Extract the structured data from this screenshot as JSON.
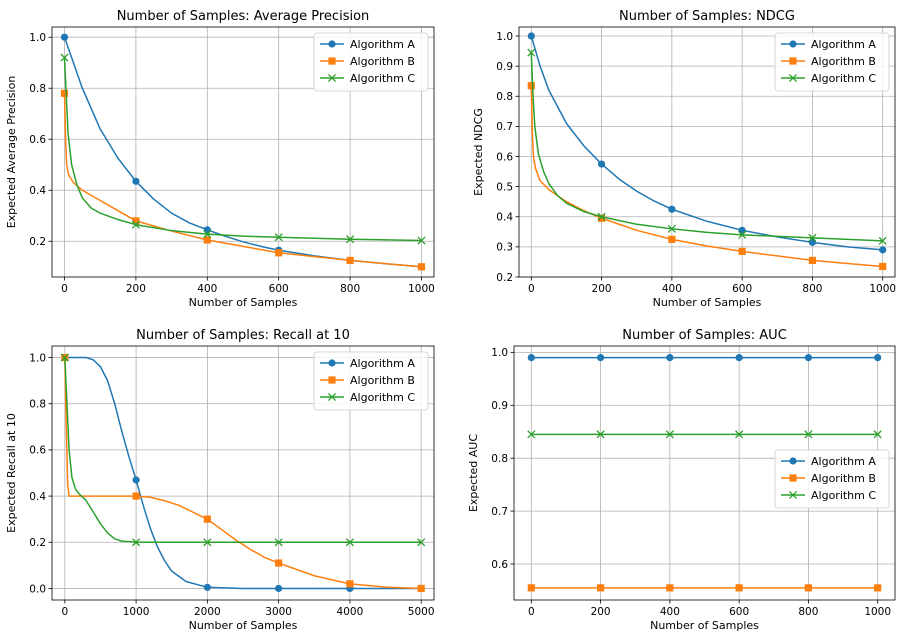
{
  "colors": {
    "Algorithm A": "#1f77b4",
    "Algorithm B": "#ff7f0e",
    "Algorithm C": "#2ca02c"
  },
  "chart_data": [
    {
      "type": "line",
      "title": "Number of Samples: Average Precision",
      "xlabel": "Number of Samples",
      "ylabel": "Expected Average Precision",
      "xlim": [
        -35,
        1035
      ],
      "ylim": [
        0.06,
        1.04
      ],
      "xticks": [
        0,
        200,
        400,
        600,
        800,
        1000
      ],
      "yticks": [
        0.2,
        0.4,
        0.6,
        0.8,
        1.0
      ],
      "grid": true,
      "legend": "top-right",
      "x": [
        0,
        200,
        400,
        600,
        800,
        1000
      ],
      "series": [
        {
          "name": "Algorithm A",
          "marker": "circle",
          "values": [
            1.0,
            0.435,
            0.245,
            0.165,
            0.125,
            0.1
          ],
          "curve": [
            [
              0,
              1.0
            ],
            [
              50,
              0.8
            ],
            [
              100,
              0.64
            ],
            [
              150,
              0.525
            ],
            [
              200,
              0.435
            ],
            [
              250,
              0.365
            ],
            [
              300,
              0.31
            ],
            [
              350,
              0.272
            ],
            [
              400,
              0.245
            ],
            [
              450,
              0.22
            ],
            [
              500,
              0.198
            ],
            [
              550,
              0.18
            ],
            [
              600,
              0.165
            ],
            [
              700,
              0.143
            ],
            [
              800,
              0.125
            ],
            [
              900,
              0.112
            ],
            [
              1000,
              0.1
            ]
          ]
        },
        {
          "name": "Algorithm B",
          "marker": "square",
          "values": [
            0.78,
            0.28,
            0.205,
            0.155,
            0.125,
            0.1
          ],
          "curve": [
            [
              0,
              0.78
            ],
            [
              3,
              0.6
            ],
            [
              6,
              0.5
            ],
            [
              12,
              0.46
            ],
            [
              25,
              0.43
            ],
            [
              50,
              0.4
            ],
            [
              100,
              0.36
            ],
            [
              150,
              0.32
            ],
            [
              200,
              0.28
            ],
            [
              300,
              0.24
            ],
            [
              400,
              0.205
            ],
            [
              500,
              0.18
            ],
            [
              600,
              0.155
            ],
            [
              700,
              0.14
            ],
            [
              800,
              0.125
            ],
            [
              900,
              0.112
            ],
            [
              1000,
              0.1
            ]
          ]
        },
        {
          "name": "Algorithm C",
          "marker": "x",
          "values": [
            0.92,
            0.265,
            0.228,
            0.216,
            0.208,
            0.203
          ],
          "curve": [
            [
              0,
              0.92
            ],
            [
              10,
              0.62
            ],
            [
              20,
              0.5
            ],
            [
              35,
              0.42
            ],
            [
              50,
              0.37
            ],
            [
              75,
              0.33
            ],
            [
              100,
              0.31
            ],
            [
              150,
              0.285
            ],
            [
              200,
              0.265
            ],
            [
              300,
              0.242
            ],
            [
              400,
              0.228
            ],
            [
              500,
              0.22
            ],
            [
              600,
              0.216
            ],
            [
              800,
              0.208
            ],
            [
              1000,
              0.203
            ]
          ]
        }
      ]
    },
    {
      "type": "line",
      "title": "Number of Samples: NDCG",
      "xlabel": "Number of Samples",
      "ylabel": "Expected NDCG",
      "xlim": [
        -35,
        1035
      ],
      "ylim": [
        0.2,
        1.03
      ],
      "xticks": [
        0,
        200,
        400,
        600,
        800,
        1000
      ],
      "yticks": [
        0.2,
        0.3,
        0.4,
        0.5,
        0.6,
        0.7,
        0.8,
        0.9,
        1.0
      ],
      "grid": true,
      "legend": "top-right",
      "x": [
        0,
        200,
        400,
        600,
        800,
        1000
      ],
      "series": [
        {
          "name": "Algorithm A",
          "marker": "circle",
          "values": [
            1.0,
            0.575,
            0.425,
            0.355,
            0.315,
            0.29
          ],
          "curve": [
            [
              0,
              1.0
            ],
            [
              25,
              0.9
            ],
            [
              50,
              0.82
            ],
            [
              100,
              0.71
            ],
            [
              150,
              0.635
            ],
            [
              200,
              0.575
            ],
            [
              250,
              0.525
            ],
            [
              300,
              0.485
            ],
            [
              350,
              0.452
            ],
            [
              400,
              0.425
            ],
            [
              500,
              0.385
            ],
            [
              600,
              0.355
            ],
            [
              700,
              0.333
            ],
            [
              800,
              0.315
            ],
            [
              900,
              0.3
            ],
            [
              1000,
              0.29
            ]
          ]
        },
        {
          "name": "Algorithm B",
          "marker": "square",
          "values": [
            0.835,
            0.395,
            0.325,
            0.285,
            0.255,
            0.235
          ],
          "curve": [
            [
              0,
              0.835
            ],
            [
              3,
              0.68
            ],
            [
              6,
              0.6
            ],
            [
              12,
              0.56
            ],
            [
              25,
              0.52
            ],
            [
              50,
              0.49
            ],
            [
              100,
              0.45
            ],
            [
              150,
              0.42
            ],
            [
              200,
              0.395
            ],
            [
              300,
              0.355
            ],
            [
              400,
              0.325
            ],
            [
              500,
              0.303
            ],
            [
              600,
              0.285
            ],
            [
              700,
              0.27
            ],
            [
              800,
              0.255
            ],
            [
              900,
              0.245
            ],
            [
              1000,
              0.235
            ]
          ]
        },
        {
          "name": "Algorithm C",
          "marker": "x",
          "values": [
            0.945,
            0.4,
            0.36,
            0.34,
            0.33,
            0.32
          ],
          "curve": [
            [
              0,
              0.945
            ],
            [
              5,
              0.8
            ],
            [
              10,
              0.7
            ],
            [
              20,
              0.61
            ],
            [
              35,
              0.55
            ],
            [
              50,
              0.51
            ],
            [
              75,
              0.47
            ],
            [
              100,
              0.445
            ],
            [
              150,
              0.417
            ],
            [
              200,
              0.4
            ],
            [
              300,
              0.375
            ],
            [
              400,
              0.36
            ],
            [
              500,
              0.348
            ],
            [
              600,
              0.34
            ],
            [
              800,
              0.33
            ],
            [
              1000,
              0.32
            ]
          ]
        }
      ]
    },
    {
      "type": "line",
      "title": "Number of Samples: Recall at 10",
      "xlabel": "Number of Samples",
      "ylabel": "Expected Recall at 10",
      "xlim": [
        -180,
        5180
      ],
      "ylim": [
        -0.05,
        1.05
      ],
      "xticks": [
        0,
        1000,
        2000,
        3000,
        4000,
        5000
      ],
      "yticks": [
        0.0,
        0.2,
        0.4,
        0.6,
        0.8,
        1.0
      ],
      "grid": true,
      "legend": "top-right",
      "x": [
        0,
        1000,
        2000,
        3000,
        4000,
        5000
      ],
      "series": [
        {
          "name": "Algorithm A",
          "marker": "circle",
          "values": [
            1.0,
            0.47,
            0.005,
            0.0,
            0.0,
            0.0
          ],
          "curve": [
            [
              0,
              1.0
            ],
            [
              300,
              1.0
            ],
            [
              400,
              0.99
            ],
            [
              500,
              0.96
            ],
            [
              600,
              0.9
            ],
            [
              700,
              0.8
            ],
            [
              800,
              0.68
            ],
            [
              900,
              0.57
            ],
            [
              1000,
              0.47
            ],
            [
              1100,
              0.36
            ],
            [
              1200,
              0.26
            ],
            [
              1300,
              0.18
            ],
            [
              1400,
              0.12
            ],
            [
              1500,
              0.075
            ],
            [
              1700,
              0.03
            ],
            [
              2000,
              0.005
            ],
            [
              2500,
              0.0
            ],
            [
              3000,
              0.0
            ],
            [
              5000,
              0.0
            ]
          ]
        },
        {
          "name": "Algorithm B",
          "marker": "square",
          "values": [
            1.0,
            0.4,
            0.3,
            0.11,
            0.02,
            0.0
          ],
          "curve": [
            [
              0,
              1.0
            ],
            [
              20,
              0.7
            ],
            [
              40,
              0.45
            ],
            [
              60,
              0.4
            ],
            [
              500,
              0.4
            ],
            [
              1000,
              0.4
            ],
            [
              1200,
              0.395
            ],
            [
              1400,
              0.38
            ],
            [
              1600,
              0.36
            ],
            [
              1800,
              0.33
            ],
            [
              2000,
              0.3
            ],
            [
              2200,
              0.255
            ],
            [
              2400,
              0.21
            ],
            [
              2600,
              0.17
            ],
            [
              2800,
              0.135
            ],
            [
              3000,
              0.11
            ],
            [
              3500,
              0.055
            ],
            [
              4000,
              0.02
            ],
            [
              4500,
              0.006
            ],
            [
              5000,
              0.0
            ]
          ]
        },
        {
          "name": "Algorithm C",
          "marker": "x",
          "values": [
            1.0,
            0.2,
            0.2,
            0.2,
            0.2,
            0.2
          ],
          "curve": [
            [
              0,
              1.0
            ],
            [
              30,
              0.8
            ],
            [
              60,
              0.6
            ],
            [
              100,
              0.48
            ],
            [
              150,
              0.43
            ],
            [
              200,
              0.41
            ],
            [
              300,
              0.38
            ],
            [
              400,
              0.33
            ],
            [
              500,
              0.28
            ],
            [
              600,
              0.24
            ],
            [
              700,
              0.215
            ],
            [
              800,
              0.205
            ],
            [
              1000,
              0.2
            ],
            [
              2000,
              0.2
            ],
            [
              5000,
              0.2
            ]
          ]
        }
      ]
    },
    {
      "type": "line",
      "title": "Number of Samples: AUC",
      "xlabel": "Number of Samples",
      "ylabel": "Expected AUC",
      "xlim": [
        -50,
        1050
      ],
      "ylim": [
        0.532,
        1.012
      ],
      "xticks": [
        0,
        200,
        400,
        600,
        800,
        1000
      ],
      "yticks": [
        0.6,
        0.7,
        0.8,
        0.9,
        1.0
      ],
      "grid": true,
      "legend": "center-right",
      "x": [
        0,
        200,
        400,
        600,
        800,
        1000
      ],
      "series": [
        {
          "name": "Algorithm A",
          "marker": "circle",
          "values": [
            0.99,
            0.99,
            0.99,
            0.99,
            0.99,
            0.99
          ]
        },
        {
          "name": "Algorithm B",
          "marker": "square",
          "values": [
            0.555,
            0.555,
            0.555,
            0.555,
            0.555,
            0.555
          ]
        },
        {
          "name": "Algorithm C",
          "marker": "x",
          "values": [
            0.845,
            0.845,
            0.845,
            0.845,
            0.845,
            0.845
          ]
        }
      ]
    }
  ]
}
